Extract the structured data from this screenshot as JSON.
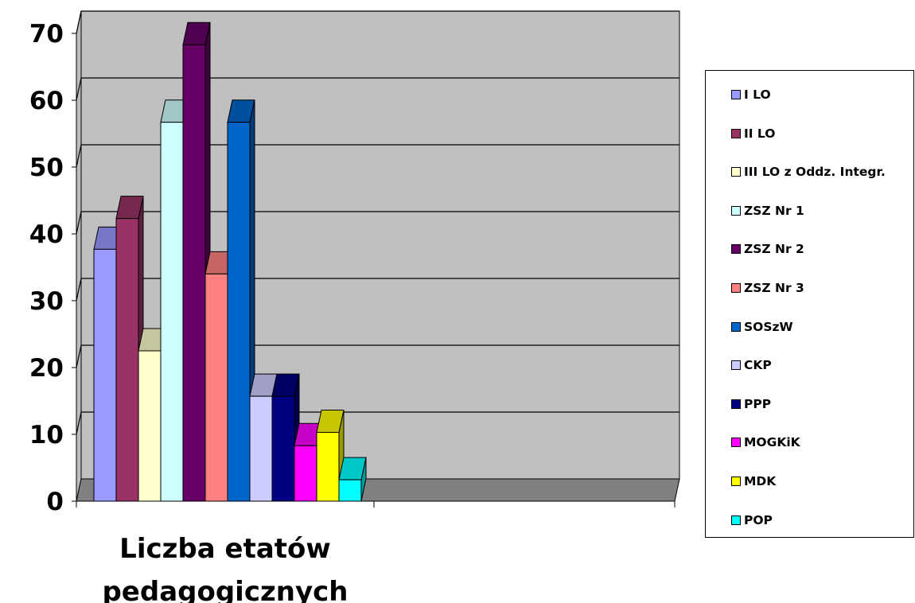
{
  "chart_data": {
    "type": "bar",
    "xlabel_lines": [
      "Liczba etatów",
      "pedagogicznych"
    ],
    "ylim": [
      0,
      70
    ],
    "yticks": [
      "0",
      "10",
      "20",
      "30",
      "40",
      "50",
      "60",
      "70"
    ],
    "grid": true,
    "legend_position": "right",
    "series": [
      {
        "name": "I LO",
        "value": 37.7,
        "color": "#9999ff"
      },
      {
        "name": "II LO",
        "value": 42.3,
        "color": "#993366"
      },
      {
        "name": "III LO z Oddz. Integr.",
        "value": 22.5,
        "color": "#ffffcc"
      },
      {
        "name": "ZSZ Nr 1",
        "value": 56.7,
        "color": "#ccffff"
      },
      {
        "name": "ZSZ Nr 2",
        "value": 68.3,
        "color": "#660066"
      },
      {
        "name": "ZSZ Nr 3",
        "value": 34.0,
        "color": "#ff8080"
      },
      {
        "name": "SOSzW",
        "value": 56.7,
        "color": "#0066cc"
      },
      {
        "name": "CKP",
        "value": 15.7,
        "color": "#ccccff"
      },
      {
        "name": "PPP",
        "value": 15.7,
        "color": "#000080"
      },
      {
        "name": "MOGKiK",
        "value": 8.3,
        "color": "#ff00ff"
      },
      {
        "name": "MDK",
        "value": 10.3,
        "color": "#ffff00"
      },
      {
        "name": "POP",
        "value": 3.2,
        "color": "#00ffff"
      }
    ]
  }
}
